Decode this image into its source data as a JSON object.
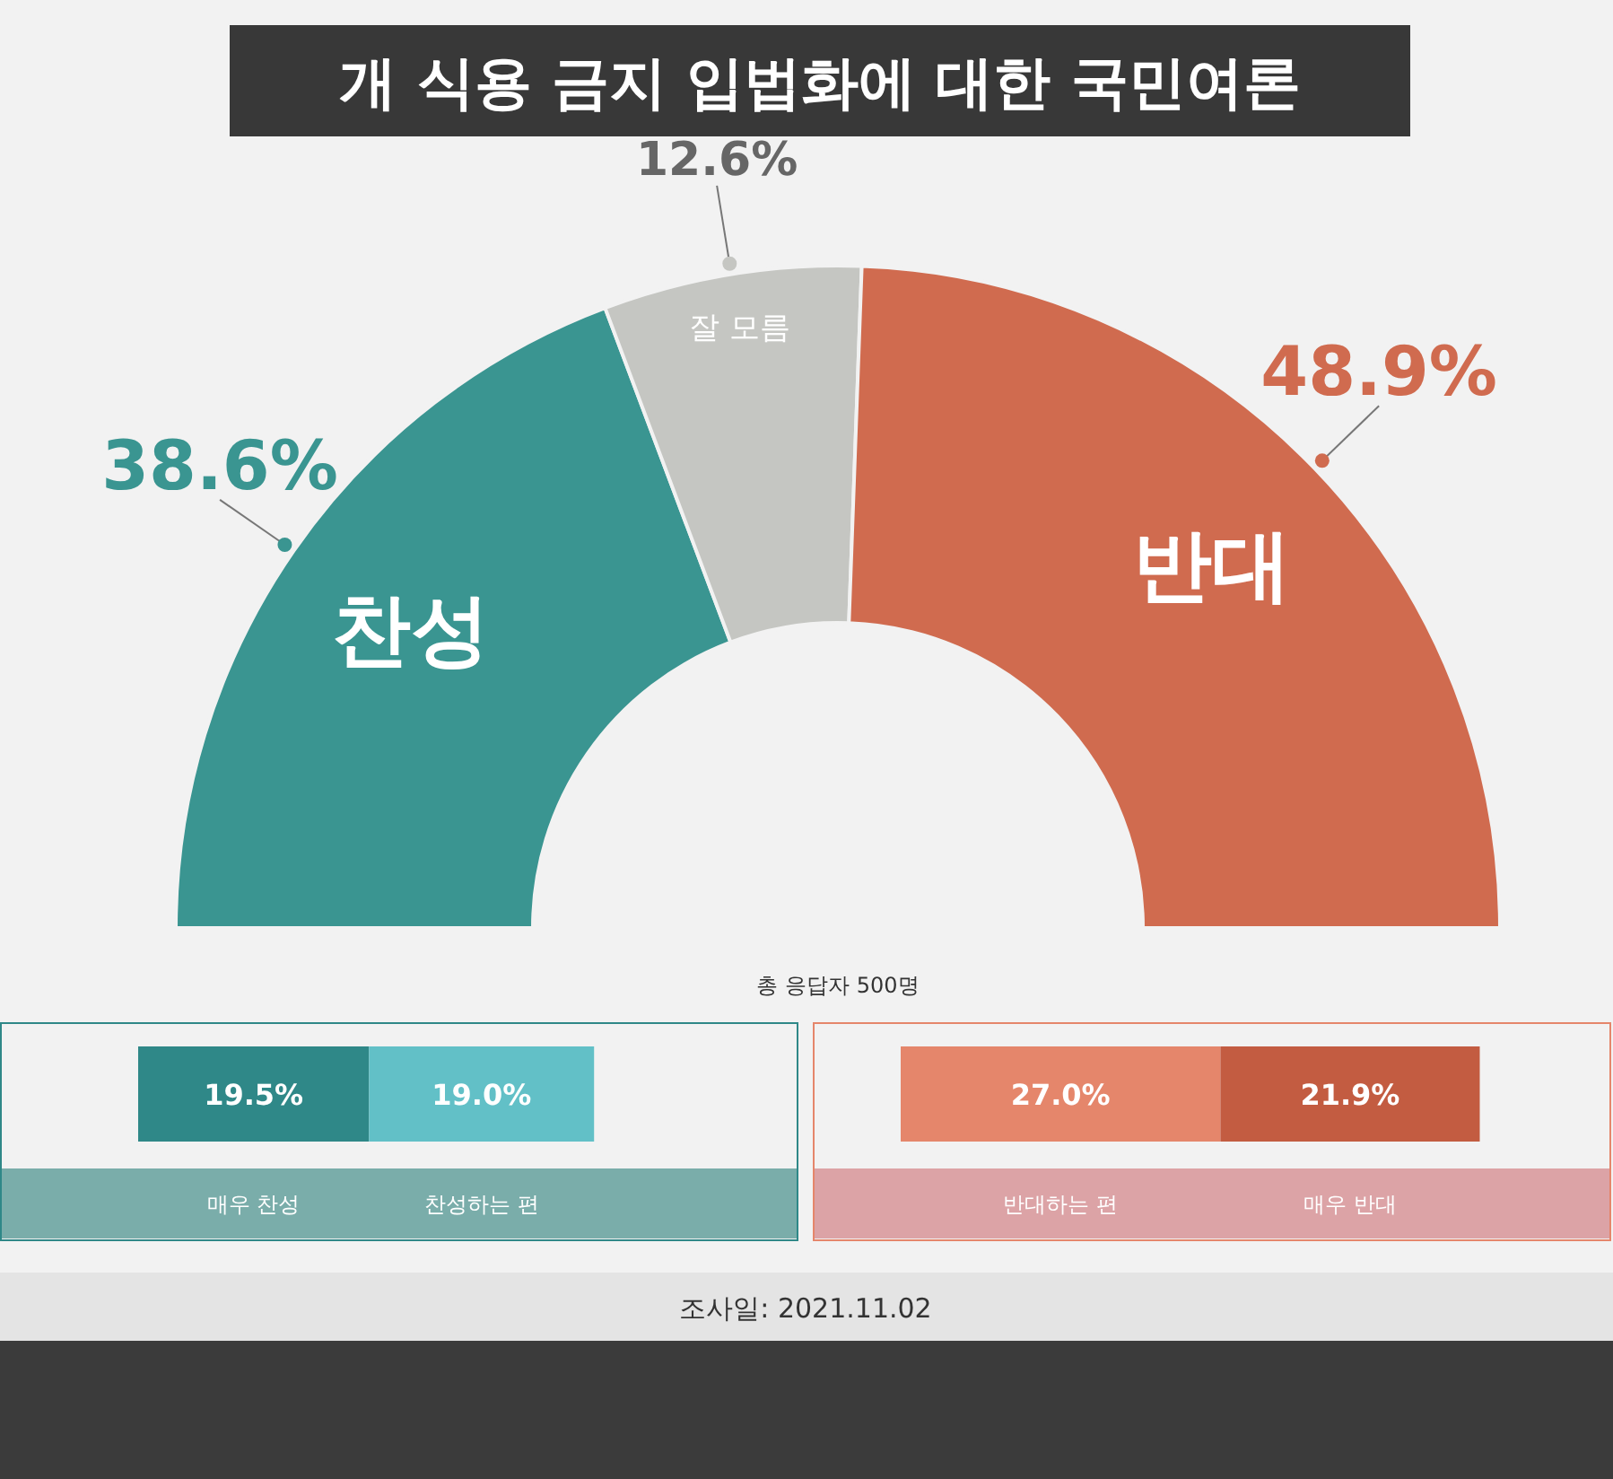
{
  "chart_data": [
    {
      "type": "donut",
      "title": "개 식용 금지 입법화에 대한 국민여론",
      "categories": [
        "찬성",
        "잘 모름",
        "반대"
      ],
      "values": [
        38.6,
        12.6,
        48.9
      ],
      "colors": [
        "#3a9591",
        "#c5c6c2",
        "#d06b4f"
      ],
      "value_labels": [
        "38.6%",
        "12.6%",
        "48.9%"
      ],
      "legend": "center",
      "annotations": [
        "총 응답자 500명",
        "조사일: 2021.11.02"
      ]
    },
    {
      "type": "bar",
      "orientation": "horizontal",
      "stacked": true,
      "categories": [
        null
      ],
      "series": [
        {
          "name": "매우 찬성",
          "color": "#2f8888",
          "values": [
            19.5
          ],
          "value_labels": [
            "19.5%"
          ]
        },
        {
          "name": "찬성하는 편",
          "color": "#62c0c7",
          "values": [
            19.0
          ],
          "value_labels": [
            "19.0%"
          ]
        }
      ]
    },
    {
      "type": "bar",
      "orientation": "horizontal",
      "stacked": true,
      "categories": [
        null
      ],
      "series": [
        {
          "name": "반대하는 편",
          "color": "#e5866b",
          "values": [
            27.0
          ],
          "value_labels": [
            "27.0%"
          ]
        },
        {
          "name": "매우 반대",
          "color": "#c35c41",
          "values": [
            21.9
          ],
          "value_labels": [
            "21.9%"
          ]
        }
      ]
    }
  ]
}
